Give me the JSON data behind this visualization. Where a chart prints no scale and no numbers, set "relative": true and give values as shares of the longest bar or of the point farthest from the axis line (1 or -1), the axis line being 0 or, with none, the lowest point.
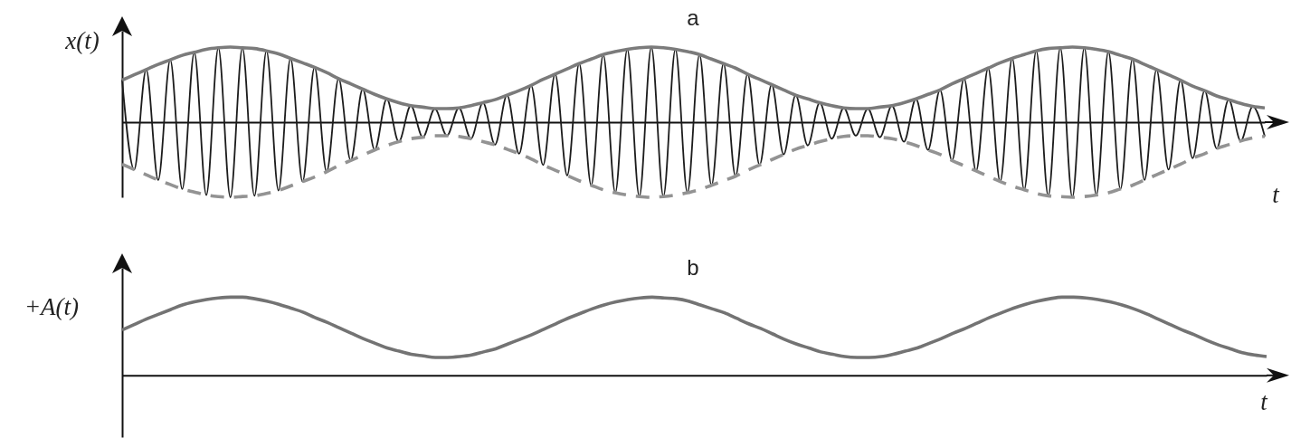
{
  "chart_data": [
    {
      "type": "line",
      "title": "a",
      "ylabel": "x(t)",
      "xlabel": "t",
      "relative": true,
      "categories": [
        null,
        null,
        null,
        null,
        null,
        null,
        null,
        null,
        null,
        null,
        null,
        null,
        null,
        null,
        null,
        null,
        null,
        null,
        null,
        null,
        null,
        null,
        null,
        null,
        null,
        null,
        null,
        null,
        null,
        null,
        null,
        null,
        null,
        null,
        null,
        null,
        null,
        null,
        null,
        null,
        null,
        null,
        null,
        null,
        null,
        null,
        null,
        null,
        null,
        null,
        null,
        null,
        null,
        null,
        null,
        null,
        null,
        null,
        null,
        null,
        null,
        null,
        null,
        null,
        null,
        null,
        null,
        null,
        null,
        null,
        null,
        null,
        null,
        null,
        null,
        null,
        null,
        null,
        null,
        null,
        null,
        null,
        null,
        null,
        null,
        null,
        null,
        null,
        null,
        null,
        null,
        null,
        null,
        null,
        null,
        null
      ],
      "series": [
        {
          "color": "#1c1c1c",
          "values": [
            0.56,
            -0.63,
            0.7,
            -0.77,
            0.83,
            -0.89,
            0.93,
            -0.97,
            0.99,
            -1.0,
            0.99,
            -0.98,
            0.95,
            -0.91,
            0.85,
            -0.79,
            0.73,
            -0.66,
            0.58,
            -0.51,
            0.44,
            -0.37,
            0.31,
            -0.26,
            0.22,
            -0.2,
            0.18,
            -0.18,
            0.19,
            -0.22,
            0.26,
            -0.3,
            0.36,
            -0.42,
            0.49,
            -0.57,
            0.64,
            -0.71,
            0.78,
            -0.84,
            0.9,
            -0.94,
            0.97,
            -0.99,
            1.0,
            -0.99,
            0.97,
            -0.94,
            0.9,
            -0.84,
            0.78,
            -0.72,
            0.64,
            -0.57,
            0.5,
            -0.43,
            0.36,
            -0.31,
            0.26,
            -0.22,
            0.19,
            -0.18,
            0.18,
            -0.2,
            0.22,
            -0.26,
            0.31,
            -0.37,
            0.43,
            -0.51,
            0.58,
            -0.65,
            0.72,
            -0.79,
            0.85,
            -0.9,
            0.95,
            -0.98,
            0.99,
            -1.0,
            0.99,
            -0.97,
            0.94,
            -0.89,
            0.84,
            -0.77,
            0.7,
            -0.63,
            0.56,
            -0.48,
            0.42,
            -0.35,
            0.3,
            -0.25,
            0.21,
            -0.19
          ]
        },
        {
          "color": "#7b7b7b",
          "line_style": "solid",
          "values": [
            0.56,
            0.63,
            0.7,
            0.77,
            0.83,
            0.89,
            0.93,
            0.97,
            0.99,
            1.0,
            0.99,
            0.98,
            0.95,
            0.91,
            0.85,
            0.79,
            0.73,
            0.66,
            0.58,
            0.51,
            0.44,
            0.37,
            0.31,
            0.26,
            0.22,
            0.2,
            0.18,
            0.18,
            0.19,
            0.22,
            0.26,
            0.3,
            0.36,
            0.42,
            0.49,
            0.57,
            0.64,
            0.71,
            0.78,
            0.84,
            0.9,
            0.94,
            0.97,
            0.99,
            1.0,
            0.99,
            0.97,
            0.94,
            0.9,
            0.84,
            0.78,
            0.72,
            0.64,
            0.57,
            0.5,
            0.43,
            0.36,
            0.31,
            0.26,
            0.22,
            0.19,
            0.18,
            0.18,
            0.2,
            0.22,
            0.26,
            0.31,
            0.37,
            0.43,
            0.51,
            0.58,
            0.65,
            0.72,
            0.79,
            0.85,
            0.9,
            0.95,
            0.98,
            0.99,
            1.0,
            0.99,
            0.97,
            0.94,
            0.89,
            0.84,
            0.77,
            0.7,
            0.63,
            0.56,
            0.48,
            0.42,
            0.35,
            0.3,
            0.25,
            0.21,
            0.19
          ]
        },
        {
          "color": "#939393",
          "line_style": "dashed",
          "values": [
            -0.56,
            -0.63,
            -0.7,
            -0.77,
            -0.83,
            -0.89,
            -0.93,
            -0.97,
            -0.99,
            -1.0,
            -0.99,
            -0.98,
            -0.95,
            -0.91,
            -0.85,
            -0.79,
            -0.73,
            -0.66,
            -0.58,
            -0.51,
            -0.44,
            -0.37,
            -0.31,
            -0.26,
            -0.22,
            -0.2,
            -0.18,
            -0.18,
            -0.19,
            -0.22,
            -0.26,
            -0.3,
            -0.36,
            -0.42,
            -0.49,
            -0.57,
            -0.64,
            -0.71,
            -0.78,
            -0.84,
            -0.9,
            -0.94,
            -0.97,
            -0.99,
            -1.0,
            -0.99,
            -0.97,
            -0.94,
            -0.9,
            -0.84,
            -0.78,
            -0.72,
            -0.64,
            -0.57,
            -0.5,
            -0.43,
            -0.36,
            -0.31,
            -0.26,
            -0.22,
            -0.19,
            -0.18,
            -0.18,
            -0.2,
            -0.22,
            -0.26,
            -0.31,
            -0.37,
            -0.43,
            -0.51,
            -0.58,
            -0.65,
            -0.72,
            -0.79,
            -0.85,
            -0.9,
            -0.95,
            -0.98,
            -0.99,
            -1.0,
            -0.99,
            -0.97,
            -0.94,
            -0.89,
            -0.84,
            -0.77,
            -0.7,
            -0.63,
            -0.56,
            -0.48,
            -0.42,
            -0.35,
            -0.3,
            -0.25,
            -0.21,
            -0.19
          ]
        }
      ]
    },
    {
      "type": "line",
      "title": "b",
      "ylabel": "+A(t)",
      "xlabel": "t",
      "relative": true,
      "categories": [
        null,
        null,
        null,
        null,
        null,
        null,
        null,
        null,
        null,
        null,
        null,
        null,
        null,
        null,
        null,
        null,
        null,
        null,
        null,
        null,
        null,
        null,
        null,
        null,
        null,
        null,
        null,
        null,
        null,
        null,
        null,
        null,
        null,
        null,
        null,
        null,
        null,
        null,
        null,
        null,
        null,
        null,
        null,
        null,
        null,
        null,
        null,
        null,
        null,
        null,
        null,
        null,
        null,
        null,
        null,
        null,
        null,
        null,
        null,
        null,
        null,
        null,
        null,
        null,
        null,
        null,
        null,
        null,
        null,
        null,
        null,
        null,
        null,
        null,
        null,
        null,
        null,
        null,
        null,
        null,
        null,
        null,
        null,
        null,
        null,
        null,
        null,
        null,
        null,
        null,
        null,
        null,
        null,
        null,
        null,
        null
      ],
      "series": [
        {
          "color": "#737373",
          "values": [
            0.58,
            0.65,
            0.72,
            0.78,
            0.84,
            0.9,
            0.94,
            0.97,
            0.99,
            1.0,
            1.0,
            0.98,
            0.95,
            0.91,
            0.86,
            0.81,
            0.74,
            0.68,
            0.61,
            0.54,
            0.47,
            0.41,
            0.35,
            0.31,
            0.27,
            0.25,
            0.23,
            0.23,
            0.24,
            0.26,
            0.3,
            0.34,
            0.4,
            0.46,
            0.52,
            0.59,
            0.66,
            0.73,
            0.79,
            0.85,
            0.9,
            0.94,
            0.97,
            0.99,
            1.0,
            0.99,
            0.98,
            0.95,
            0.9,
            0.85,
            0.8,
            0.73,
            0.66,
            0.6,
            0.53,
            0.46,
            0.4,
            0.35,
            0.3,
            0.27,
            0.24,
            0.23,
            0.23,
            0.24,
            0.27,
            0.31,
            0.35,
            0.41,
            0.47,
            0.54,
            0.6,
            0.67,
            0.74,
            0.8,
            0.86,
            0.91,
            0.95,
            0.98,
            1.0,
            1.0,
            0.99,
            0.97,
            0.94,
            0.9,
            0.85,
            0.79,
            0.72,
            0.65,
            0.58,
            0.52,
            0.45,
            0.39,
            0.34,
            0.29,
            0.26,
            0.24
          ]
        }
      ]
    }
  ]
}
